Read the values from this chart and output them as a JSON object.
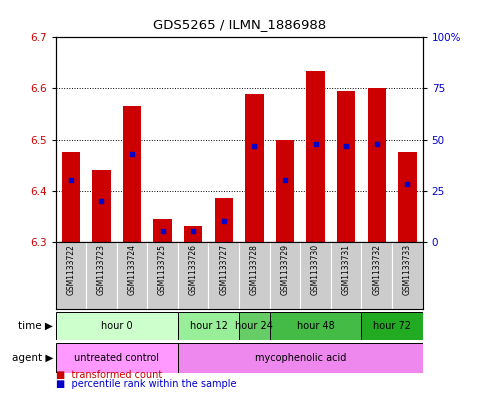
{
  "title": "GDS5265 / ILMN_1886988",
  "samples": [
    "GSM1133722",
    "GSM1133723",
    "GSM1133724",
    "GSM1133725",
    "GSM1133726",
    "GSM1133727",
    "GSM1133728",
    "GSM1133729",
    "GSM1133730",
    "GSM1133731",
    "GSM1133732",
    "GSM1133733"
  ],
  "bar_values": [
    6.475,
    6.44,
    6.565,
    6.345,
    6.33,
    6.385,
    6.59,
    6.5,
    6.635,
    6.595,
    6.6,
    6.475
  ],
  "percentile_values": [
    30,
    20,
    43,
    5,
    5,
    10,
    47,
    30,
    48,
    47,
    48,
    28
  ],
  "ylim": [
    6.3,
    6.7
  ],
  "y_left_ticks": [
    6.3,
    6.4,
    6.5,
    6.6,
    6.7
  ],
  "y_right_ticks": [
    0,
    25,
    50,
    75,
    100
  ],
  "bar_color": "#cc0000",
  "percentile_color": "#0000cc",
  "bar_width": 0.6,
  "time_groups": [
    {
      "label": "hour 0",
      "indices": [
        0,
        1,
        2,
        3
      ],
      "color": "#ccffcc"
    },
    {
      "label": "hour 12",
      "indices": [
        4,
        5
      ],
      "color": "#99ee99"
    },
    {
      "label": "hour 24",
      "indices": [
        6
      ],
      "color": "#66cc66"
    },
    {
      "label": "hour 48",
      "indices": [
        7,
        8,
        9
      ],
      "color": "#44bb44"
    },
    {
      "label": "hour 72",
      "indices": [
        10,
        11
      ],
      "color": "#22aa22"
    }
  ],
  "agent_groups": [
    {
      "label": "untreated control",
      "indices": [
        0,
        1,
        2,
        3
      ],
      "color": "#ff99ff"
    },
    {
      "label": "mycophenolic acid",
      "indices": [
        4,
        5,
        6,
        7,
        8,
        9,
        10,
        11
      ],
      "color": "#ee88ee"
    }
  ],
  "xlabel_color": "#cc0000",
  "ylabel_right_color": "#0000cc",
  "background_color": "#ffffff",
  "plot_bg_color": "#ffffff",
  "names_bg_color": "#cccccc"
}
